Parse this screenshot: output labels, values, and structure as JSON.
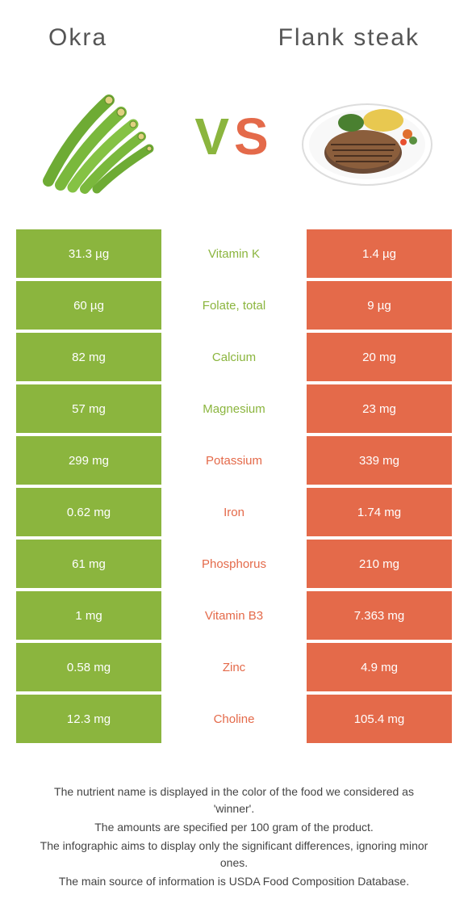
{
  "header": {
    "left_title": "Okra",
    "right_title": "Flank steak"
  },
  "vs": {
    "v": "V",
    "s": "S"
  },
  "colors": {
    "green": "#8bb53e",
    "orange": "#e46a4a",
    "white": "#ffffff"
  },
  "rows": [
    {
      "left": "31.3 µg",
      "mid": "Vitamin K",
      "right": "1.4 µg",
      "winner": "left"
    },
    {
      "left": "60 µg",
      "mid": "Folate, total",
      "right": "9 µg",
      "winner": "left"
    },
    {
      "left": "82 mg",
      "mid": "Calcium",
      "right": "20 mg",
      "winner": "left"
    },
    {
      "left": "57 mg",
      "mid": "Magnesium",
      "right": "23 mg",
      "winner": "left"
    },
    {
      "left": "299 mg",
      "mid": "Potassium",
      "right": "339 mg",
      "winner": "right"
    },
    {
      "left": "0.62 mg",
      "mid": "Iron",
      "right": "1.74 mg",
      "winner": "right"
    },
    {
      "left": "61 mg",
      "mid": "Phosphorus",
      "right": "210 mg",
      "winner": "right"
    },
    {
      "left": "1 mg",
      "mid": "Vitamin B3",
      "right": "7.363 mg",
      "winner": "right"
    },
    {
      "left": "0.58 mg",
      "mid": "Zinc",
      "right": "4.9 mg",
      "winner": "right"
    },
    {
      "left": "12.3 mg",
      "mid": "Choline",
      "right": "105.4 mg",
      "winner": "right"
    }
  ],
  "footer": {
    "line1": "The nutrient name is displayed in the color of the food we considered as 'winner'.",
    "line2": "The amounts are specified per 100 gram of the product.",
    "line3": "The infographic aims to display only the significant differences, ignoring minor ones.",
    "line4": "The main source of information is USDA Food Composition Database."
  }
}
